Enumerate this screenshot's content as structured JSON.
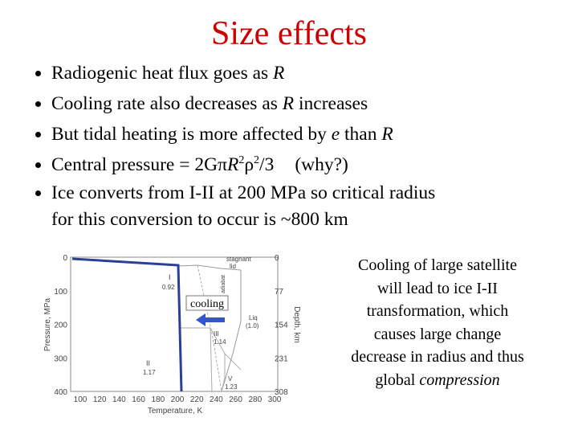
{
  "title": "Size effects",
  "bullets": [
    [
      "Radiogenic heat flux goes as ",
      "R"
    ],
    [
      "Cooling rate also decreases as ",
      "R",
      " increases"
    ],
    [
      "But tidal heating is more affected by ",
      "e",
      " than ",
      "R"
    ],
    [
      "Central pressure = 2G",
      "π",
      "R",
      "2",
      "ρ",
      "2",
      "/3",
      "(why?)"
    ],
    [
      "Ice converts from I-II at 200 MPa so critical radius",
      "for this conversion to occur is ~800 km"
    ]
  ],
  "figure": {
    "y_label": "Pressure, MPa",
    "x_label": "Temperature, K",
    "y2_label": "Depth, km",
    "yticks": [
      "0",
      "100",
      "200",
      "300",
      "400"
    ],
    "xticks": [
      "100",
      "120",
      "140",
      "160",
      "180",
      "200",
      "220",
      "240",
      "260",
      "280",
      "300"
    ],
    "y2ticks": [
      "0",
      "77",
      "154",
      "231",
      "308"
    ],
    "annotation": "cooling",
    "phase_labels": {
      "lid": [
        "stagnant",
        "lid"
      ],
      "ice_I": [
        "I",
        "0.92"
      ],
      "ice_II": [
        "II",
        "1.17"
      ],
      "ice_III": [
        "III",
        "1.14"
      ],
      "ice_V": [
        "V",
        "1.23"
      ],
      "liquid": [
        "Liq",
        "(1.0)"
      ],
      "adiabat": "adiabat"
    }
  },
  "caption": [
    "Cooling of large satellite",
    "will lead to ice I-II",
    "transformation, which",
    "causes large change",
    "decrease in radius and thus",
    "global ",
    "compression"
  ]
}
